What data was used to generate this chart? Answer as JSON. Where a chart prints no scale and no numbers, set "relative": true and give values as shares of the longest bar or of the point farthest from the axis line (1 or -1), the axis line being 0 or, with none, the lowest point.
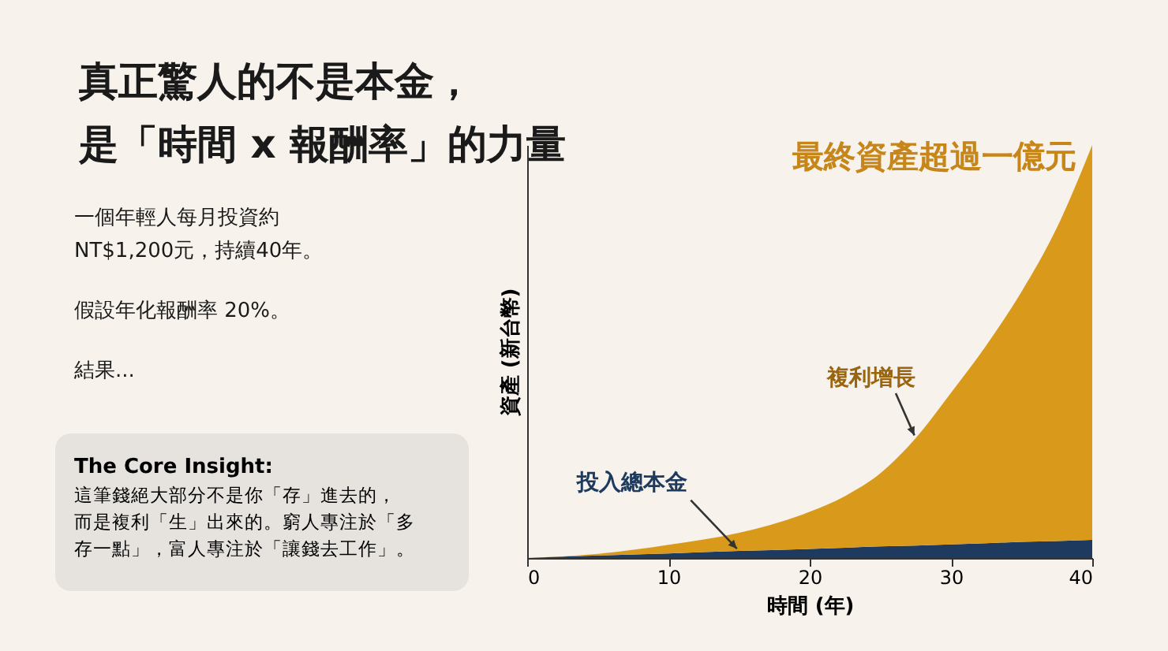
{
  "chart_data": {
    "type": "area",
    "title": "真正驚人的不是本金，是「時間 x 報酬率」的力量",
    "xlabel": "時間 (年)",
    "ylabel": "資產 (新台幣)",
    "relative": true,
    "stacked": true,
    "x": [
      0,
      5,
      10,
      15,
      20,
      22.5,
      25,
      27.5,
      30,
      32.5,
      35,
      37.5,
      40
    ],
    "xlim": [
      0,
      40
    ],
    "xticks": [
      0,
      10,
      20,
      30,
      40
    ],
    "series": [
      {
        "name": "投入總本金",
        "color": "#1f3a5f",
        "values": [
          0,
          0.006,
          0.011,
          0.017,
          0.022,
          0.025,
          0.028,
          0.03,
          0.033,
          0.036,
          0.039,
          0.041,
          0.044
        ]
      },
      {
        "name": "複利增長",
        "color": "#d99a1c",
        "values": [
          0,
          0.004,
          0.021,
          0.044,
          0.09,
          0.125,
          0.177,
          0.26,
          0.367,
          0.479,
          0.606,
          0.759,
          0.956
        ]
      }
    ],
    "annotations": [
      "一個年輕人每月投資約\nNT$1,200元，持續40年。",
      "假設年化報酬率 20%。",
      "結果...",
      "The Core Insight:",
      "這筆錢絕大部分不是你「存」進去的，而是複利「生」出來的。窮人專注於「多存一點」，富人專注於「讓錢去工作」。",
      {
        "text": "最終資產超過一億元",
        "x": 40,
        "y": 1
      }
    ]
  }
}
